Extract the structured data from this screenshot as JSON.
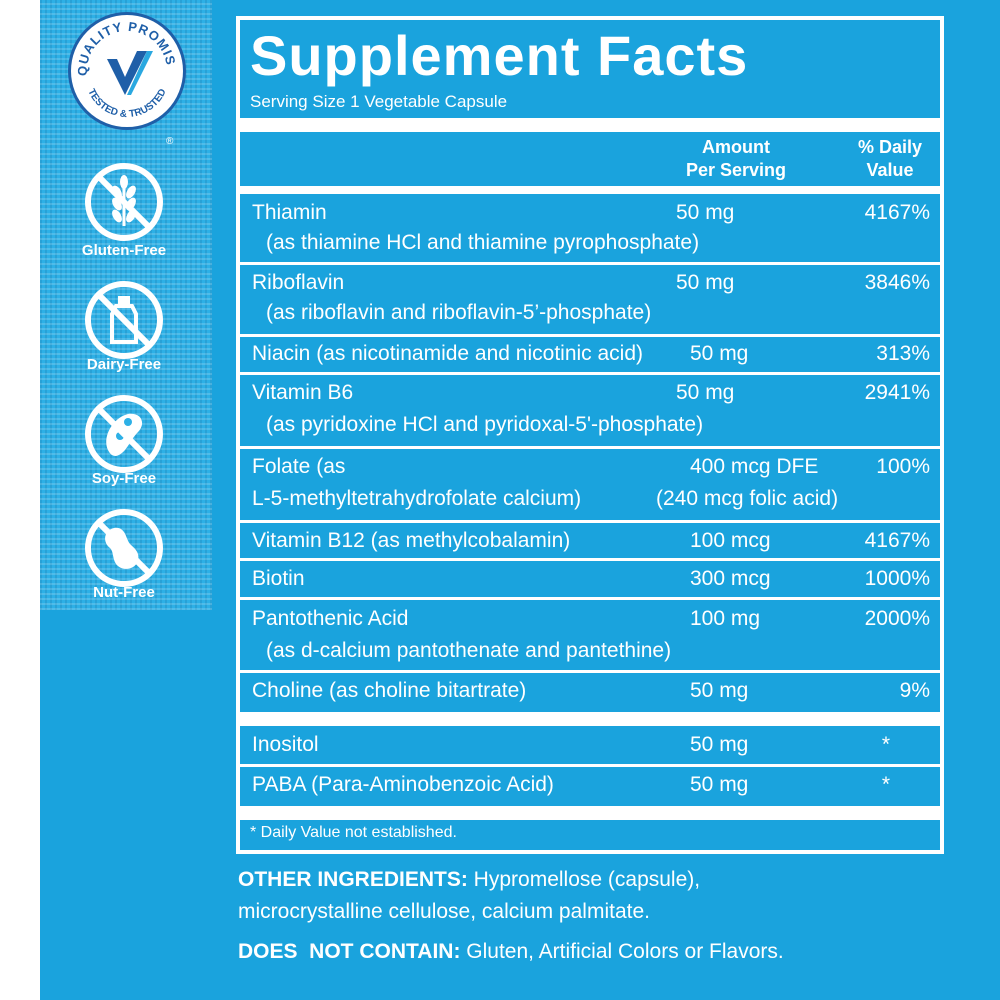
{
  "badge": {
    "top_text": "QUALITY PROMISE",
    "bottom_text": "TESTED & TRUSTED",
    "reg": "®"
  },
  "free_icons": [
    {
      "icon": "wheat-slash-icon",
      "label": "Gluten-Free"
    },
    {
      "icon": "bottle-slash-icon",
      "label": "Dairy-Free"
    },
    {
      "icon": "soybean-slash-icon",
      "label": "Soy-Free"
    },
    {
      "icon": "peanut-slash-icon",
      "label": "Nut-Free"
    }
  ],
  "facts": {
    "title": "Supplement Facts",
    "serving_size": "Serving Size 1 Vegetable Capsule",
    "header_amount_1": "Amount",
    "header_amount_2": "Per Serving",
    "header_dv_1": "% Daily",
    "header_dv_2": "Value",
    "rows": [
      {
        "name": "Thiamin",
        "detail": "(as thiamine HCl and thiamine pyrophosphate)",
        "amount": "50 mg",
        "dv": "4167%"
      },
      {
        "name": "Riboflavin",
        "detail": "(as riboflavin and riboflavin-5’-phosphate)",
        "amount": "50 mg",
        "dv": "3846%"
      },
      {
        "name": "Niacin (as nicotinamide and nicotinic acid)",
        "detail": "",
        "amount": "50 mg",
        "dv": "313%"
      },
      {
        "name": "Vitamin B6",
        "detail": "(as pyridoxine HCl and pyridoxal-5'-phosphate)",
        "amount": "50 mg",
        "dv": "2941%"
      },
      {
        "name": "Folate (as",
        "detail": "L-5-methyltetrahydrofolate calcium)",
        "amount": "400 mcg DFE",
        "amount_detail": "(240 mcg folic acid)",
        "dv": "100%"
      },
      {
        "name": "Vitamin B12 (as methylcobalamin)",
        "detail": "",
        "amount": "100 mcg",
        "dv": "4167%"
      },
      {
        "name": "Biotin",
        "detail": "",
        "amount": "300 mcg",
        "dv": "1000%"
      },
      {
        "name": "Pantothenic Acid",
        "detail": "(as d-calcium pantothenate and pantethine)",
        "amount": "100 mg",
        "dv": "2000%"
      },
      {
        "name": "Choline (as choline bitartrate)",
        "detail": "",
        "amount": "50 mg",
        "dv": "9%"
      },
      {
        "name": "Inositol",
        "detail": "",
        "amount": "50 mg",
        "dv": "*"
      },
      {
        "name": "PABA (Para-Aminobenzoic Acid)",
        "detail": "",
        "amount": "50 mg",
        "dv": "*"
      }
    ],
    "footnote": "* Daily Value not established."
  },
  "other_ingredients": {
    "label": "OTHER INGREDIENTS:",
    "line1": " Hypromellose (capsule),",
    "line2": "microcrystalline cellulose, calcium palmitate."
  },
  "does_not_contain": {
    "label": "DOES  NOT CONTAIN:",
    "text": " Gluten, Artificial Colors or Flavors."
  },
  "colors": {
    "panel_blue": "#1aa3dd",
    "badge_navy": "#1f5fa8",
    "white": "#ffffff"
  }
}
